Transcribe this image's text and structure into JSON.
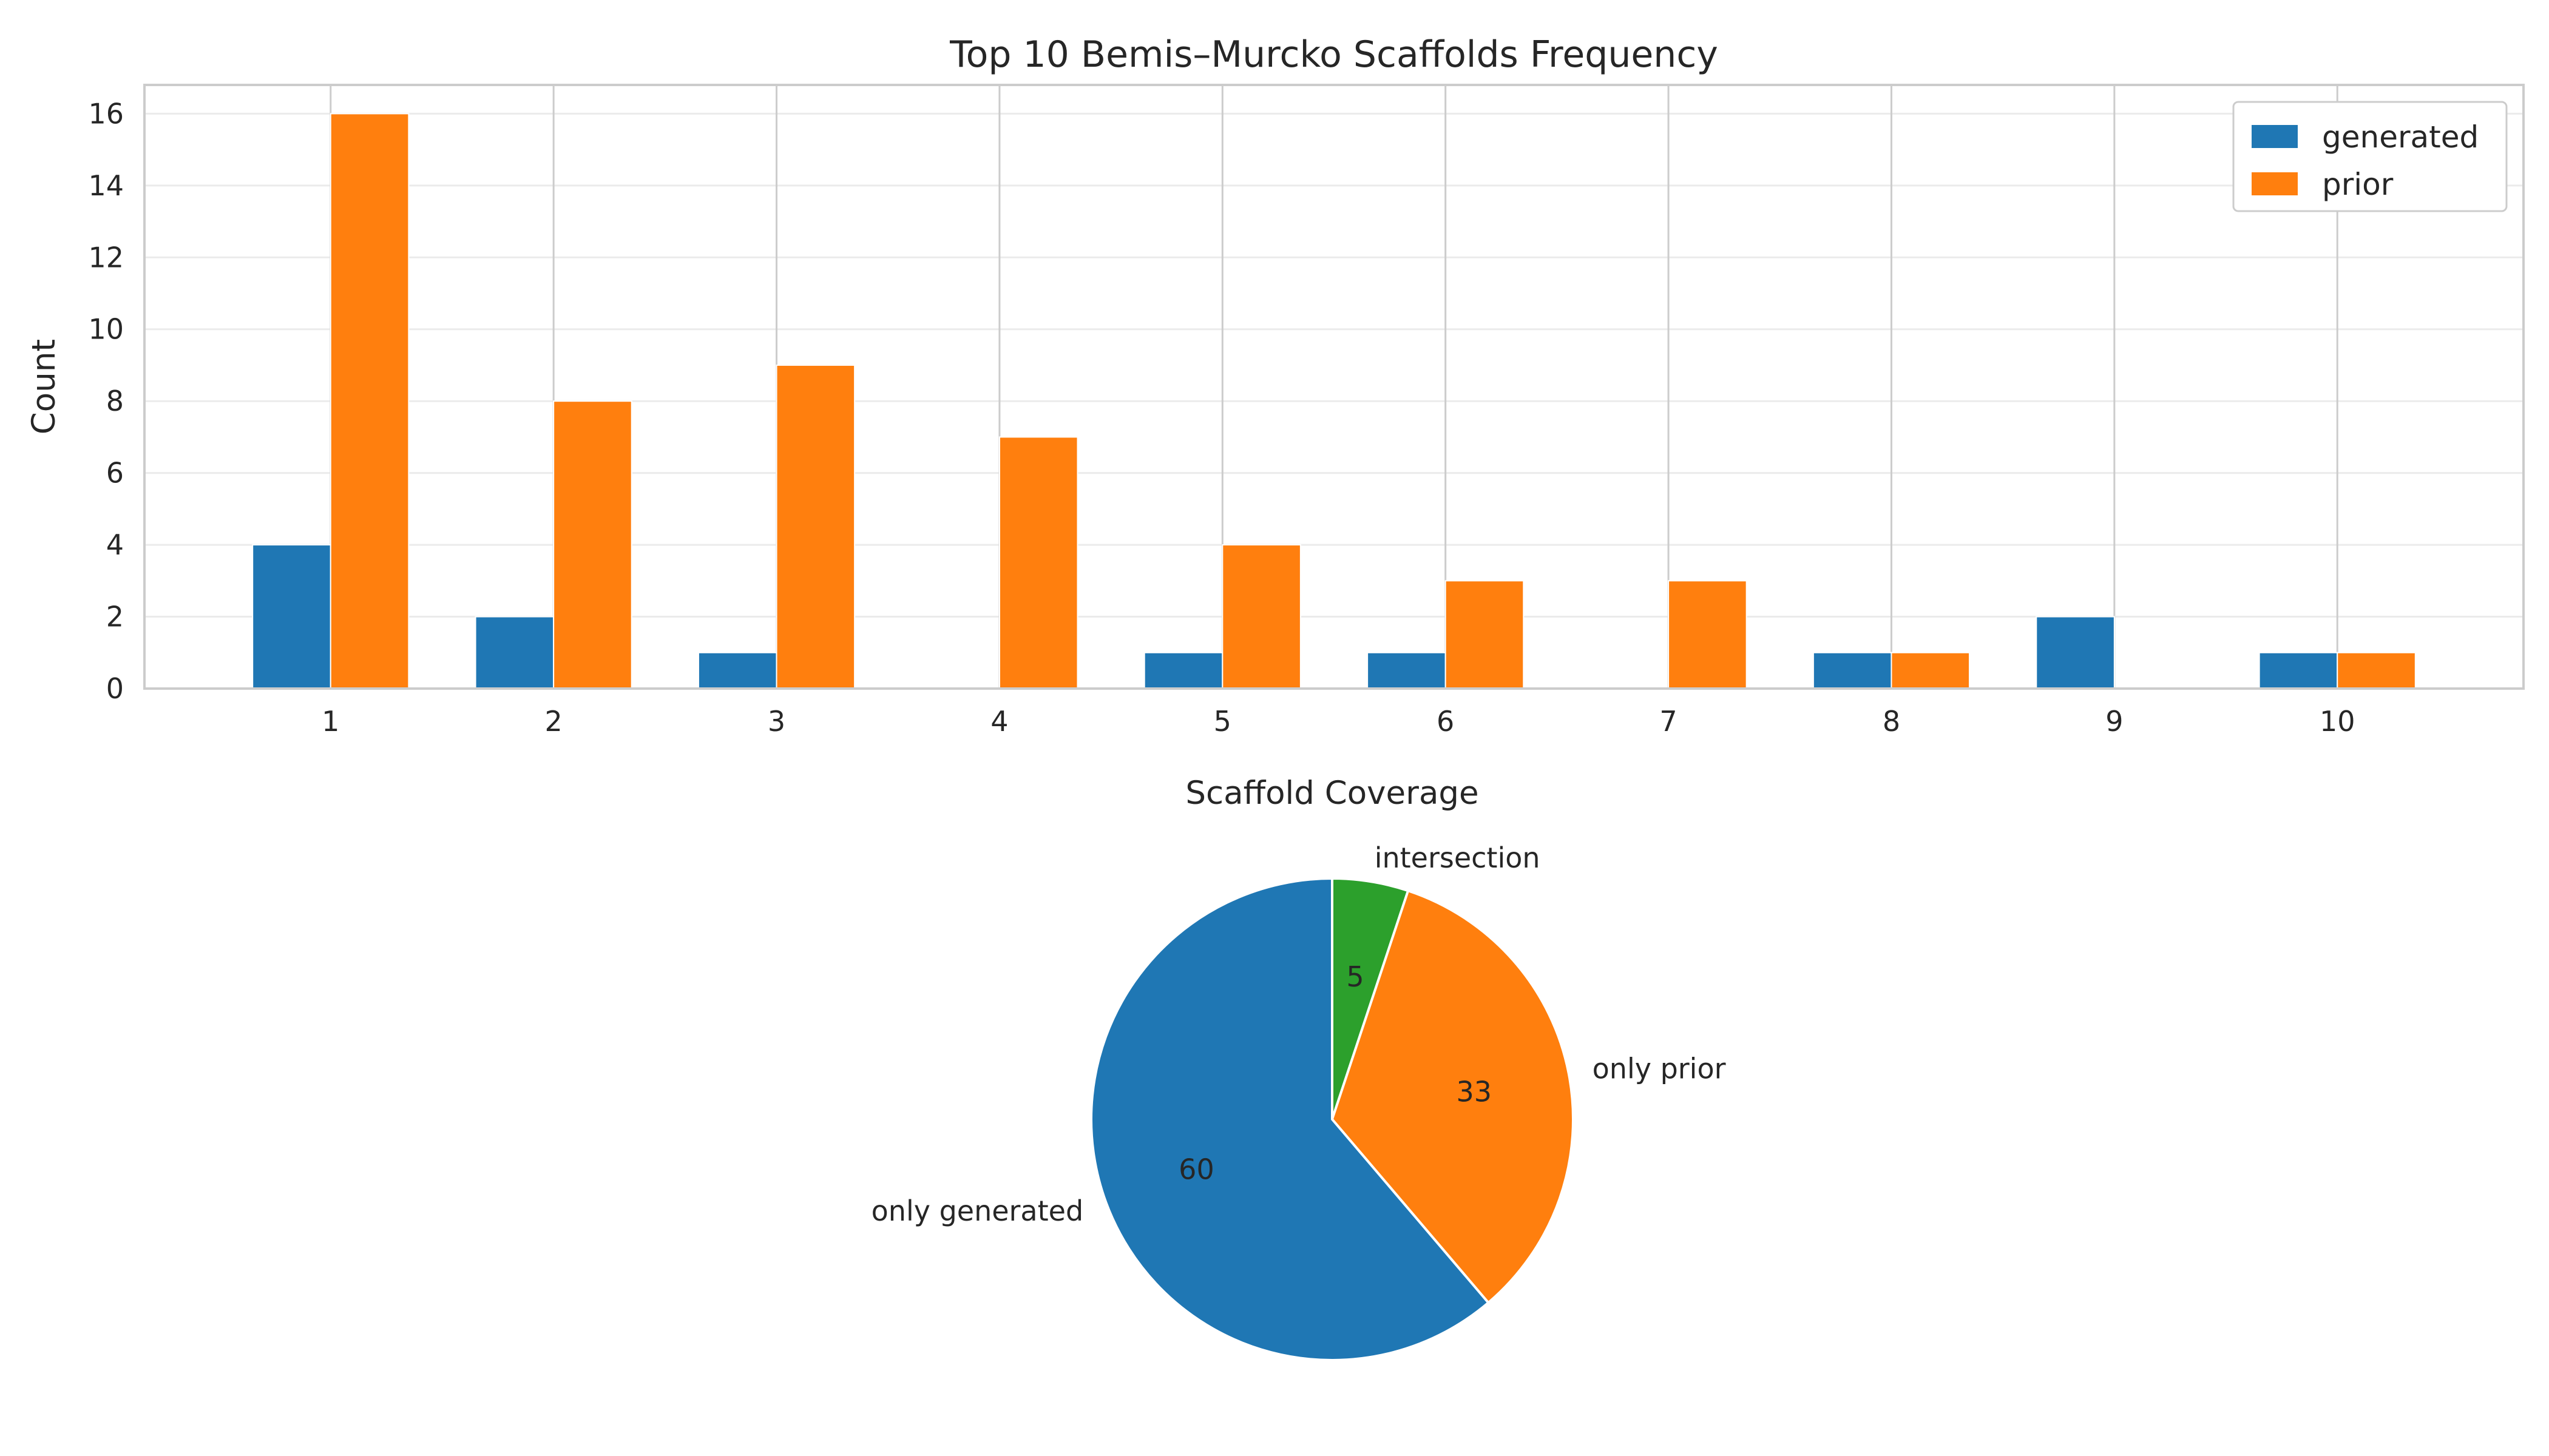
{
  "chart_data": [
    {
      "type": "bar",
      "title": "Top 10 Bemis–Murcko Scaffolds Frequency",
      "xlabel": "",
      "ylabel": "Count",
      "categories": [
        "1",
        "2",
        "3",
        "4",
        "5",
        "6",
        "7",
        "8",
        "9",
        "10"
      ],
      "series": [
        {
          "name": "generated",
          "color": "#1f77b4",
          "values": [
            4,
            2,
            1,
            0,
            1,
            1,
            0,
            1,
            2,
            1
          ]
        },
        {
          "name": "prior",
          "color": "#ff7f0e",
          "values": [
            16,
            8,
            9,
            7,
            4,
            3,
            3,
            1,
            0,
            1
          ]
        }
      ],
      "ylim": [
        0,
        16.8
      ],
      "yticks": [
        0,
        2,
        4,
        6,
        8,
        10,
        12,
        14,
        16
      ],
      "grid": true,
      "legend_position": "top-right"
    },
    {
      "type": "pie",
      "title": "Scaffold Coverage",
      "slices": [
        {
          "label": "intersection",
          "value": 5,
          "display": "5",
          "color": "#2ca02c"
        },
        {
          "label": "only prior",
          "value": 33,
          "display": "33",
          "color": "#ff7f0e"
        },
        {
          "label": "only generated",
          "value": 60,
          "display": "60",
          "color": "#1f77b4"
        }
      ],
      "start_angle": "top",
      "direction": "clockwise"
    }
  ]
}
